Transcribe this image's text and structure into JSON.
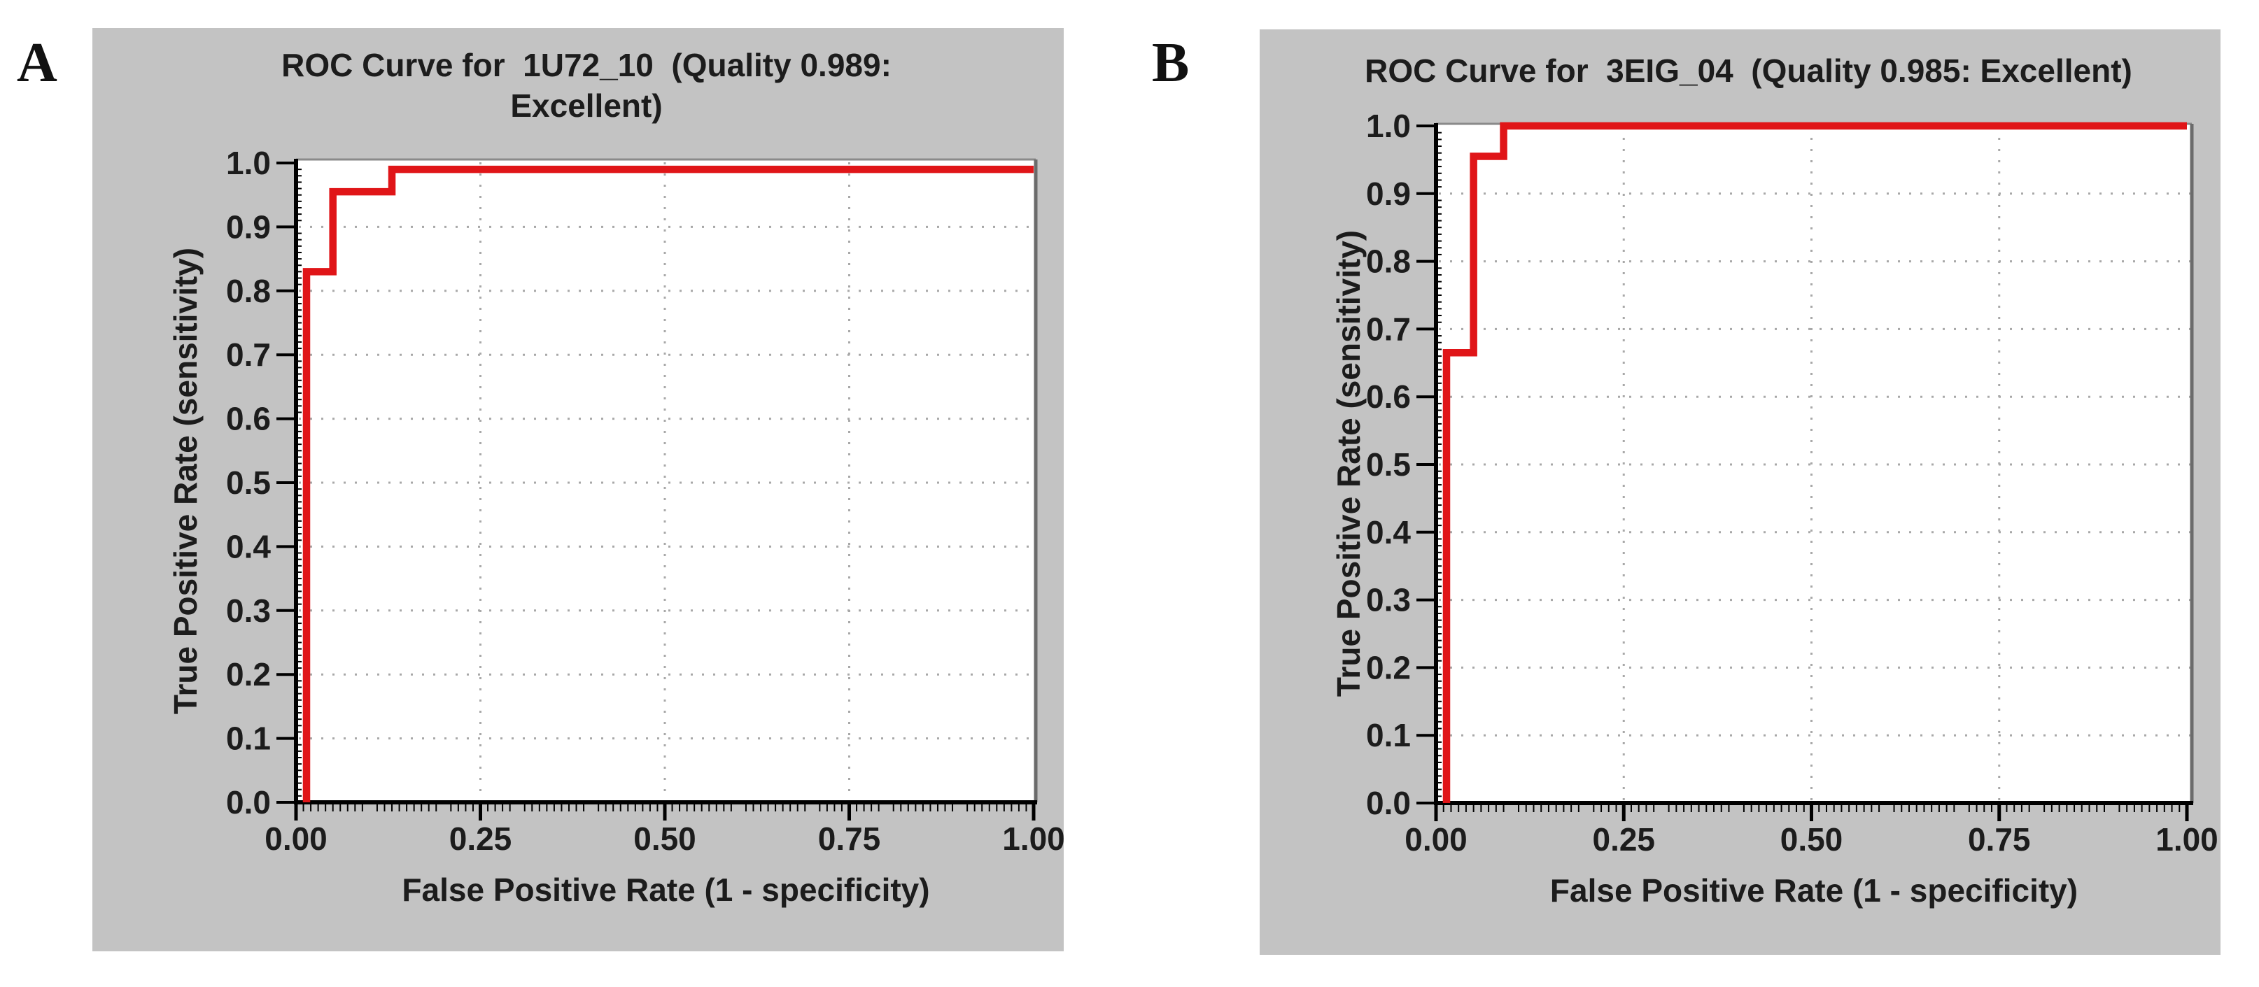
{
  "figure": {
    "description": "Two ROC curve plots side by side",
    "panel_labels": [
      "A",
      "B"
    ],
    "panel_background": "#c3c3c3",
    "plot_background": "#ffffff",
    "curve_color": "#e01518",
    "text_color": "#1c1c1c"
  },
  "chart_data": [
    {
      "id": "A",
      "type": "line",
      "step": true,
      "dataset": "1U72_10",
      "quality": "0.989",
      "quality_rating": "Excellent",
      "title": "ROC Curve for  1U72_10  (Quality 0.989: Excellent)",
      "title_lines": [
        "ROC Curve for  1U72_10  (Quality 0.989:",
        "Excellent)"
      ],
      "xlabel": "False Positive Rate (1 - specificity)",
      "ylabel": "True Positive Rate (sensitivity)",
      "xlim": [
        0.0,
        1.0
      ],
      "ylim": [
        0.0,
        1.0
      ],
      "x_tick_values": [
        0.0,
        0.25,
        0.5,
        0.75,
        1.0
      ],
      "x_tick_labels": [
        "0.00",
        "0.25",
        "0.50",
        "0.75",
        "1.00"
      ],
      "y_tick_values": [
        0.0,
        0.1,
        0.2,
        0.3,
        0.4,
        0.5,
        0.6,
        0.7,
        0.8,
        0.9,
        1.0
      ],
      "y_tick_labels": [
        "0.0",
        "0.1",
        "0.2",
        "0.3",
        "0.4",
        "0.5",
        "0.6",
        "0.7",
        "0.8",
        "0.9",
        "1.0"
      ],
      "grid": true,
      "legend": "none",
      "series": [
        {
          "name": "ROC curve",
          "color": "#e01518",
          "points": [
            [
              0.0,
              0.0
            ],
            [
              0.0,
              0.83
            ],
            [
              0.05,
              0.83
            ],
            [
              0.05,
              0.955
            ],
            [
              0.13,
              0.955
            ],
            [
              0.13,
              0.99
            ],
            [
              1.0,
              0.99
            ]
          ]
        }
      ]
    },
    {
      "id": "B",
      "type": "line",
      "step": true,
      "dataset": "3EIG_04",
      "quality": "0.985",
      "quality_rating": "Excellent",
      "title": "ROC Curve for  3EIG_04  (Quality 0.985: Excellent)",
      "title_lines": [
        "ROC Curve for  3EIG_04  (Quality 0.985: Excellent)"
      ],
      "xlabel": "False Positive Rate (1 - specificity)",
      "ylabel": "True Positive Rate (sensitivity)",
      "xlim": [
        0.0,
        1.0
      ],
      "ylim": [
        0.0,
        1.0
      ],
      "x_tick_values": [
        0.0,
        0.25,
        0.5,
        0.75,
        1.0
      ],
      "x_tick_labels": [
        "0.00",
        "0.25",
        "0.50",
        "0.75",
        "1.00"
      ],
      "y_tick_values": [
        0.0,
        0.1,
        0.2,
        0.3,
        0.4,
        0.5,
        0.6,
        0.7,
        0.8,
        0.9,
        1.0
      ],
      "y_tick_labels": [
        "0.0",
        "0.1",
        "0.2",
        "0.3",
        "0.4",
        "0.5",
        "0.6",
        "0.7",
        "0.8",
        "0.9",
        "1.0"
      ],
      "grid": true,
      "legend": "none",
      "series": [
        {
          "name": "ROC curve",
          "color": "#e01518",
          "points": [
            [
              0.0,
              0.0
            ],
            [
              0.0,
              0.665
            ],
            [
              0.05,
              0.665
            ],
            [
              0.05,
              0.955
            ],
            [
              0.09,
              0.955
            ],
            [
              0.09,
              1.0
            ],
            [
              1.0,
              1.0
            ]
          ]
        }
      ]
    }
  ]
}
